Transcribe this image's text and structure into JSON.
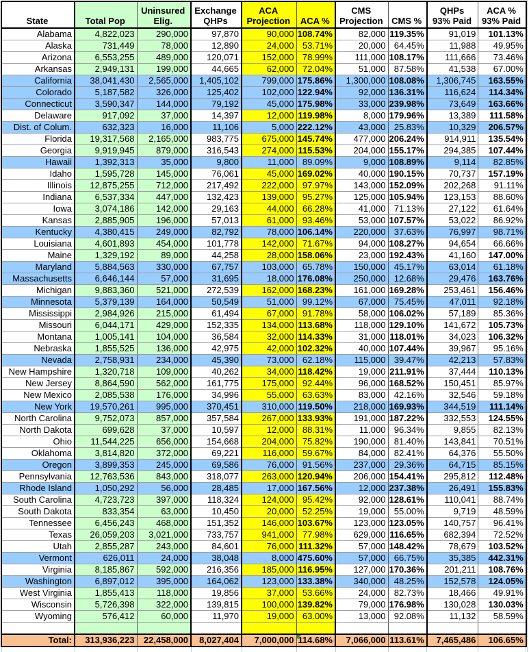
{
  "colors": {
    "green_bg": "#CCFFCC",
    "yellow_bg": "#FFFF00",
    "blue_highlight_bg": "#99CCFF",
    "total_row_bg": "#FAC090",
    "grid_line": "#9e9e9e",
    "border": "#000000",
    "comment_marker_green": "#1e8a1e"
  },
  "table": {
    "columns": [
      {
        "id": "state",
        "lines": [
          "State"
        ],
        "bg": "none"
      },
      {
        "id": "total_pop",
        "lines": [
          "Total Pop"
        ],
        "bg": "green"
      },
      {
        "id": "uninsured_elig",
        "lines": [
          "Uninsured",
          "Elig."
        ],
        "bg": "green"
      },
      {
        "id": "exchange_qhps",
        "lines": [
          "Exchange",
          "QHPs"
        ],
        "bg": "none"
      },
      {
        "id": "aca_projection",
        "lines": [
          "ACA",
          "Projection"
        ],
        "bg": "yellow"
      },
      {
        "id": "aca_pct",
        "lines": [
          "ACA %"
        ],
        "bg": "yellow",
        "percent": true
      },
      {
        "id": "cms_projection",
        "lines": [
          "CMS",
          "Projection"
        ],
        "bg": "none"
      },
      {
        "id": "cms_pct",
        "lines": [
          "CMS %"
        ],
        "bg": "none",
        "percent": true
      },
      {
        "id": "qhps_93_paid",
        "lines": [
          "QHPs",
          "93% Paid"
        ],
        "bg": "none"
      },
      {
        "id": "aca_pct_93_paid",
        "lines": [
          "ACA %",
          "93% Paid"
        ],
        "bg": "none",
        "percent": true
      }
    ],
    "rows": [
      {
        "state": "Alabama",
        "values": [
          "4,822,023",
          "290,000",
          "97,870",
          "90,000",
          "108.74%",
          "82,000",
          "119.35%",
          "91,019",
          "101.13%"
        ],
        "highlight": false
      },
      {
        "state": "Alaska",
        "values": [
          "731,449",
          "78,000",
          "12,890",
          "24,000",
          "53.71%",
          "20,000",
          "64.45%",
          "11,988",
          "49.95%"
        ],
        "highlight": false
      },
      {
        "state": "Arizona",
        "values": [
          "6,553,255",
          "489,000",
          "120,071",
          "152,000",
          "78.99%",
          "111,000",
          "108.17%",
          "111,666",
          "73.46%"
        ],
        "highlight": false
      },
      {
        "state": "Arkansas",
        "values": [
          "2,949,131",
          "199,000",
          "44,665",
          "62,000",
          "72.04%",
          "51,000",
          "87.58%",
          "41,538",
          "67.00%"
        ],
        "highlight": false
      },
      {
        "state": "California",
        "values": [
          "38,041,430",
          "2,565,000",
          "1,405,102",
          "799,000",
          "175.86%",
          "1,300,000",
          "108.08%",
          "1,306,745",
          "163.55%"
        ],
        "highlight": true
      },
      {
        "state": "Colorado",
        "values": [
          "5,187,582",
          "326,000",
          "125,402",
          "102,000",
          "122.94%",
          "92,000",
          "136.31%",
          "116,624",
          "114.34%"
        ],
        "highlight": true
      },
      {
        "state": "Connecticut",
        "values": [
          "3,590,347",
          "144,000",
          "79,192",
          "45,000",
          "175.98%",
          "33,000",
          "239.98%",
          "73,649",
          "163.66%"
        ],
        "highlight": true
      },
      {
        "state": "Delaware",
        "values": [
          "917,092",
          "37,000",
          "14,397",
          "12,000",
          "119.98%",
          "8,000",
          "179.96%",
          "13,389",
          "111.58%"
        ],
        "highlight": false
      },
      {
        "state": "Dist. of Colum.",
        "values": [
          "632,323",
          "16,000",
          "11,106",
          "5,000",
          "222.12%",
          "43,000",
          "25.83%",
          "10,329",
          "206.57%"
        ],
        "highlight": true
      },
      {
        "state": "Florida",
        "values": [
          "19,317,568",
          "2,165,000",
          "983,775",
          "675,000",
          "145.74%",
          "477,000",
          "206.24%",
          "914,911",
          "135.54%"
        ],
        "highlight": false
      },
      {
        "state": "Georgia",
        "values": [
          "9,919,945",
          "879,000",
          "316,543",
          "274,000",
          "115.53%",
          "204,000",
          "155.17%",
          "294,385",
          "107.44%"
        ],
        "highlight": false
      },
      {
        "state": "Hawaii",
        "values": [
          "1,392,313",
          "35,000",
          "9,800",
          "11,000",
          "89.09%",
          "9,000",
          "108.89%",
          "9,114",
          "82.85%"
        ],
        "highlight": true
      },
      {
        "state": "Idaho",
        "values": [
          "1,595,728",
          "145,000",
          "76,061",
          "45,000",
          "169.02%",
          "40,000",
          "190.15%",
          "70,737",
          "157.19%"
        ],
        "highlight": false
      },
      {
        "state": "Illinois",
        "values": [
          "12,875,255",
          "712,000",
          "217,492",
          "222,000",
          "97.97%",
          "143,000",
          "152.09%",
          "202,268",
          "91.11%"
        ],
        "highlight": false
      },
      {
        "state": "Indiana",
        "values": [
          "6,537,334",
          "447,000",
          "132,423",
          "139,000",
          "95.27%",
          "125,000",
          "105.94%",
          "123,153",
          "88.60%"
        ],
        "highlight": false
      },
      {
        "state": "Iowa",
        "values": [
          "3,074,186",
          "142,000",
          "29,163",
          "44,000",
          "66.28%",
          "41,000",
          "71.13%",
          "27,122",
          "61.64%"
        ],
        "highlight": false
      },
      {
        "state": "Kansas",
        "values": [
          "2,885,905",
          "196,000",
          "57,013",
          "61,000",
          "93.46%",
          "53,000",
          "107.57%",
          "53,022",
          "86.92%"
        ],
        "highlight": false
      },
      {
        "state": "Kentucky",
        "values": [
          "4,380,415",
          "249,000",
          "82,792",
          "78,000",
          "106.14%",
          "220,000",
          "37.63%",
          "76,997",
          "98.71%"
        ],
        "highlight": true
      },
      {
        "state": "Louisiana",
        "values": [
          "4,601,893",
          "454,000",
          "101,778",
          "142,000",
          "71.67%",
          "94,000",
          "108.27%",
          "94,654",
          "66.66%"
        ],
        "highlight": false
      },
      {
        "state": "Maine",
        "values": [
          "1,329,192",
          "89,000",
          "44,258",
          "28,000",
          "158.06%",
          "23,000",
          "192.43%",
          "41,160",
          "147.00%"
        ],
        "highlight": false
      },
      {
        "state": "Maryland",
        "values": [
          "5,884,563",
          "330,000",
          "67,757",
          "103,000",
          "65.78%",
          "150,000",
          "45.17%",
          "63,014",
          "61.18%"
        ],
        "highlight": true
      },
      {
        "state": "Massachusetts",
        "values": [
          "6,646,144",
          "57,000",
          "31,695",
          "18,000",
          "176.08%",
          "250,000",
          "12.68%",
          "29,476",
          "163.76%"
        ],
        "highlight": true
      },
      {
        "state": "Michigan",
        "values": [
          "9,883,360",
          "521,000",
          "272,539",
          "162,000",
          "168.23%",
          "161,000",
          "169.28%",
          "253,461",
          "156.46%"
        ],
        "highlight": false
      },
      {
        "state": "Minnesota",
        "values": [
          "5,379,139",
          "164,000",
          "50,549",
          "51,000",
          "99.12%",
          "67,000",
          "75.45%",
          "47,011",
          "92.18%"
        ],
        "highlight": true
      },
      {
        "state": "Mississippi",
        "values": [
          "2,984,926",
          "215,000",
          "61,494",
          "67,000",
          "91.78%",
          "58,000",
          "106.02%",
          "57,189",
          "85.36%"
        ],
        "highlight": false
      },
      {
        "state": "Missouri",
        "values": [
          "6,044,171",
          "429,000",
          "152,335",
          "134,000",
          "113.68%",
          "118,000",
          "129.10%",
          "141,672",
          "105.73%"
        ],
        "highlight": false
      },
      {
        "state": "Montana",
        "values": [
          "1,005,141",
          "104,000",
          "36,584",
          "32,000",
          "114.33%",
          "31,000",
          "118.01%",
          "34,023",
          "106.32%"
        ],
        "highlight": false
      },
      {
        "state": "Nebraska",
        "values": [
          "1,855,525",
          "136,000",
          "42,975",
          "42,000",
          "102.32%",
          "40,000",
          "107.44%",
          "39,967",
          "95.16%"
        ],
        "highlight": false
      },
      {
        "state": "Nevada",
        "values": [
          "2,758,931",
          "234,000",
          "45,390",
          "73,000",
          "62.18%",
          "115,000",
          "39.47%",
          "42,213",
          "57.83%"
        ],
        "highlight": true
      },
      {
        "state": "New Hampshire",
        "values": [
          "1,320,718",
          "109,000",
          "40,262",
          "34,000",
          "118.42%",
          "19,000",
          "211.91%",
          "37,444",
          "110.13%"
        ],
        "highlight": false
      },
      {
        "state": "New Jersey",
        "values": [
          "8,864,590",
          "562,000",
          "161,775",
          "175,000",
          "92.44%",
          "96,000",
          "168.52%",
          "150,451",
          "85.97%"
        ],
        "highlight": false
      },
      {
        "state": "New Mexico",
        "values": [
          "2,085,538",
          "176,000",
          "34,996",
          "55,000",
          "63.63%",
          "83,000",
          "42.16%",
          "32,546",
          "59.18%"
        ],
        "highlight": false
      },
      {
        "state": "New York",
        "values": [
          "19,570,261",
          "995,000",
          "370,451",
          "310,000",
          "119.50%",
          "218,000",
          "169.93%",
          "344,519",
          "111.14%"
        ],
        "highlight": true
      },
      {
        "state": "North Carolina",
        "values": [
          "9,752,073",
          "857,000",
          "357,584",
          "267,000",
          "133.93%",
          "191,000",
          "187.22%",
          "332,553",
          "124.55%"
        ],
        "highlight": false
      },
      {
        "state": "North Dakota",
        "values": [
          "699,628",
          "37,000",
          "10,597",
          "12,000",
          "88.31%",
          "11,000",
          "96.34%",
          "9,855",
          "82.13%"
        ],
        "highlight": false
      },
      {
        "state": "Ohio",
        "values": [
          "11,544,225",
          "656,000",
          "154,668",
          "204,000",
          "75.82%",
          "190,000",
          "81.40%",
          "143,841",
          "70.51%"
        ],
        "highlight": false
      },
      {
        "state": "Oklahoma",
        "values": [
          "3,814,820",
          "372,000",
          "69,221",
          "116,000",
          "59.67%",
          "84,000",
          "82.41%",
          "64,376",
          "55.50%"
        ],
        "highlight": false
      },
      {
        "state": "Oregon",
        "values": [
          "3,899,353",
          "245,000",
          "69,586",
          "76,000",
          "91.56%",
          "237,000",
          "29.36%",
          "64,715",
          "85.15%"
        ],
        "highlight": true
      },
      {
        "state": "Pennsylvania",
        "values": [
          "12,763,536",
          "843,000",
          "318,077",
          "263,000",
          "120.94%",
          "206,000",
          "154.41%",
          "295,812",
          "112.48%"
        ],
        "highlight": false
      },
      {
        "state": "Rhode Island",
        "values": [
          "1,050,292",
          "56,000",
          "28,485",
          "17,000",
          "167.56%",
          "12,000",
          "237.38%",
          "26,491",
          "155.83%"
        ],
        "highlight": true
      },
      {
        "state": "South Carolina",
        "values": [
          "4,723,723",
          "397,000",
          "118,324",
          "124,000",
          "95.42%",
          "92,000",
          "128.61%",
          "110,041",
          "88.74%"
        ],
        "highlight": false
      },
      {
        "state": "South Dakota",
        "values": [
          "833,354",
          "63,000",
          "10,450",
          "20,000",
          "52.25%",
          "19,000",
          "55.00%",
          "9,719",
          "48.59%"
        ],
        "highlight": false
      },
      {
        "state": "Tennessee",
        "values": [
          "6,456,243",
          "468,000",
          "151,352",
          "146,000",
          "103.67%",
          "123,000",
          "123.05%",
          "140,757",
          "96.41%"
        ],
        "highlight": false
      },
      {
        "state": "Texas",
        "values": [
          "26,059,203",
          "3,021,000",
          "733,757",
          "941,000",
          "77.98%",
          "629,000",
          "116.65%",
          "682,394",
          "72.52%"
        ],
        "highlight": false
      },
      {
        "state": "Utah",
        "values": [
          "2,855,287",
          "243,000",
          "84,601",
          "76,000",
          "111.32%",
          "57,000",
          "148.42%",
          "78,679",
          "103.52%"
        ],
        "highlight": false
      },
      {
        "state": "Vermont",
        "values": [
          "626,011",
          "24,000",
          "38,048",
          "8,000",
          "475.60%",
          "57,000",
          "66.75%",
          "35,385",
          "442.31%"
        ],
        "highlight": true
      },
      {
        "state": "Virginia",
        "values": [
          "8,185,867",
          "592,000",
          "216,356",
          "185,000",
          "116.95%",
          "127,000",
          "170.36%",
          "201,211",
          "108.76%"
        ],
        "highlight": false
      },
      {
        "state": "Washington",
        "values": [
          "6,897,012",
          "395,000",
          "164,062",
          "123,000",
          "133.38%",
          "340,000",
          "48.25%",
          "152,578",
          "124.05%"
        ],
        "highlight": true
      },
      {
        "state": "West Virginia",
        "values": [
          "1,855,413",
          "118,000",
          "19,856",
          "37,000",
          "53.66%",
          "24,000",
          "82.73%",
          "18,466",
          "49.91%"
        ],
        "highlight": false
      },
      {
        "state": "Wisconsin",
        "values": [
          "5,726,398",
          "322,000",
          "139,815",
          "100,000",
          "139.82%",
          "79,000",
          "176.98%",
          "130,028",
          "130.03%"
        ],
        "highlight": false
      },
      {
        "state": "Wyoming",
        "values": [
          "576,412",
          "60,000",
          "11,970",
          "19,000",
          "63.00%",
          "13,000",
          "92.08%",
          "11,132",
          "58.59%"
        ],
        "highlight": false
      }
    ],
    "total_row": {
      "label": "Total:",
      "values": [
        "313,936,223",
        "22,458,000",
        "8,027,404",
        "7,000,000",
        "114.68%",
        "7,066,000",
        "113.61%",
        "7,465,486",
        "106.65%"
      ],
      "comment_marker_value_index": 4
    }
  }
}
